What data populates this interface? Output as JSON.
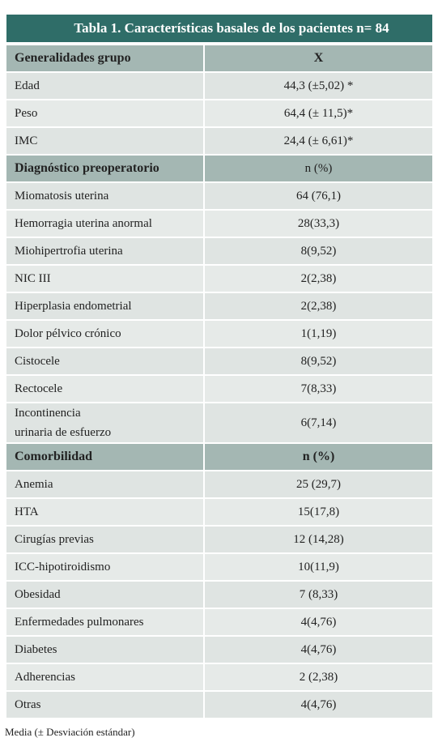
{
  "title": "Tabla 1. Características basales de los pacientes n= 84",
  "sections": [
    {
      "header": [
        "Generalidades grupo",
        "X"
      ],
      "rows": [
        [
          "Edad",
          "44,3 (±5,02) *"
        ],
        [
          "Peso",
          "64,4 (± 11,5)*"
        ],
        [
          "IMC",
          "24,4 (± 6,61)*"
        ]
      ]
    },
    {
      "header": [
        "Diagnóstico preoperatorio",
        "n (%)"
      ],
      "rows": [
        [
          "Miomatosis uterina",
          "64 (76,1)"
        ],
        [
          "Hemorragia uterina anormal",
          "28(33,3)"
        ],
        [
          "Miohipertrofia uterina",
          "8(9,52)"
        ],
        [
          "NIC III",
          "2(2,38)"
        ],
        [
          "Hiperplasia endometrial",
          "2(2,38)"
        ],
        [
          "Dolor pélvico crónico",
          "1(1,19)"
        ],
        [
          "Cistocele",
          "8(9,52)"
        ],
        [
          "Rectocele",
          "7(8,33)"
        ],
        [
          "Incontinencia\nurinaria de esfuerzo",
          "6(7,14)"
        ]
      ]
    },
    {
      "header": [
        "Comorbilidad",
        "n (%)"
      ],
      "rows": [
        [
          "Anemia",
          "25 (29,7)"
        ],
        [
          "HTA",
          "15(17,8)"
        ],
        [
          "Cirugías previas",
          "12 (14,28)"
        ],
        [
          "ICC-hipotiroidismo",
          "10(11,9)"
        ],
        [
          "Obesidad",
          "7 (8,33)"
        ],
        [
          "Enfermedades pulmonares",
          "4(4,76)"
        ],
        [
          "Diabetes",
          "4(4,76)"
        ],
        [
          "Adherencias",
          "2 (2,38)"
        ],
        [
          "Otras",
          "4(4,76)"
        ]
      ]
    }
  ],
  "footnote": "Media (± Desviación estándar)"
}
